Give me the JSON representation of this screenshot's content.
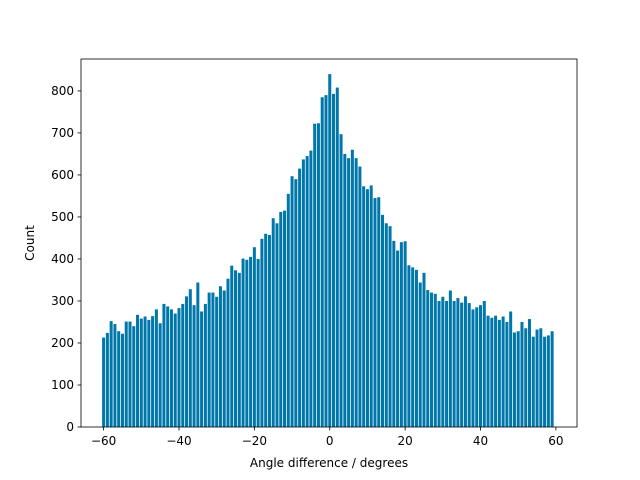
{
  "chart_data": {
    "type": "bar",
    "xlabel": "Angle difference / degrees",
    "ylabel": "Count",
    "x": [
      -60,
      -59,
      -58,
      -57,
      -56,
      -55,
      -54,
      -53,
      -52,
      -51,
      -50,
      -49,
      -48,
      -47,
      -46,
      -45,
      -44,
      -43,
      -42,
      -41,
      -40,
      -39,
      -38,
      -37,
      -36,
      -35,
      -34,
      -33,
      -32,
      -31,
      -30,
      -29,
      -28,
      -27,
      -26,
      -25,
      -24,
      -23,
      -22,
      -21,
      -20,
      -19,
      -18,
      -17,
      -16,
      -15,
      -14,
      -13,
      -12,
      -11,
      -10,
      -9,
      -8,
      -7,
      -6,
      -5,
      -4,
      -3,
      -2,
      -1,
      0,
      1,
      2,
      3,
      4,
      5,
      6,
      7,
      8,
      9,
      10,
      11,
      12,
      13,
      14,
      15,
      16,
      17,
      18,
      19,
      20,
      21,
      22,
      23,
      24,
      25,
      26,
      27,
      28,
      29,
      30,
      31,
      32,
      33,
      34,
      35,
      36,
      37,
      38,
      39,
      40,
      41,
      42,
      43,
      44,
      45,
      46,
      47,
      48,
      49,
      50,
      51,
      52,
      53,
      54,
      55,
      56,
      57,
      58,
      59
    ],
    "values": [
      213,
      224,
      252,
      245,
      228,
      222,
      251,
      251,
      240,
      267,
      258,
      263,
      255,
      264,
      280,
      247,
      293,
      287,
      280,
      270,
      283,
      293,
      311,
      328,
      290,
      344,
      275,
      293,
      320,
      320,
      310,
      335,
      325,
      353,
      384,
      373,
      367,
      401,
      398,
      405,
      428,
      400,
      448,
      460,
      457,
      497,
      485,
      512,
      515,
      555,
      597,
      590,
      615,
      637,
      645,
      658,
      722,
      723,
      785,
      790,
      840,
      793,
      808,
      697,
      650,
      640,
      660,
      640,
      620,
      573,
      566,
      575,
      545,
      547,
      505,
      485,
      478,
      443,
      420,
      440,
      442,
      385,
      380,
      374,
      344,
      367,
      326,
      320,
      317,
      300,
      310,
      300,
      325,
      300,
      307,
      296,
      311,
      295,
      280,
      285,
      290,
      300,
      265,
      260,
      265,
      255,
      263,
      250,
      275,
      225,
      228,
      250,
      235,
      257,
      215,
      232,
      235,
      215,
      218,
      228
    ],
    "color": "#0077aa",
    "xlim": [
      -66,
      65.6
    ],
    "xticks": [
      -60,
      -40,
      -20,
      0,
      20,
      40,
      60
    ],
    "ylim": [
      0,
      876
    ],
    "yticks": [
      0,
      100,
      200,
      300,
      400,
      500,
      600,
      700,
      800
    ]
  }
}
